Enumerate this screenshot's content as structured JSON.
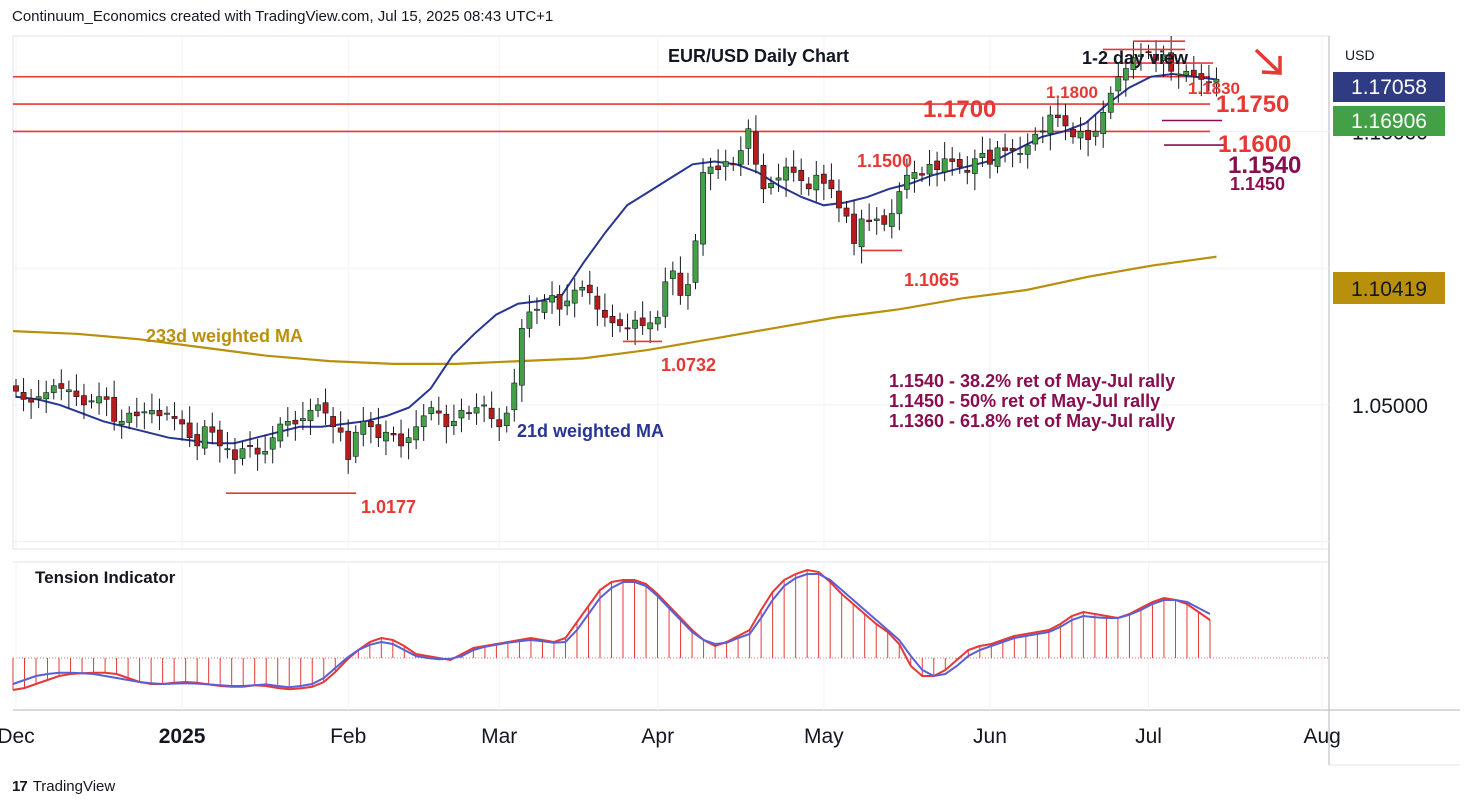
{
  "header": {
    "text": "Continuum_Economics created with TradingView.com, Jul 15, 2025 08:43 UTC+1"
  },
  "footer": {
    "logo_glyph": "17",
    "brand": "TradingView"
  },
  "chart_data": {
    "type": "candlestick",
    "title": "EUR/USD Daily Chart",
    "view_label": "1-2 day view",
    "currency_label": "USD",
    "price_badges": [
      {
        "value": "1.17058",
        "color": "#2f3b83"
      },
      {
        "value": "1.16906",
        "color": "#43a047"
      },
      {
        "value": "1.10419",
        "color": "#b8900c"
      }
    ],
    "ylim": [
      0.9973,
      1.1849
    ],
    "y_ticks": [
      {
        "value": 1.05,
        "label": "1.05000"
      },
      {
        "value": 1.15,
        "label": "1.15000"
      }
    ],
    "x_ticks": [
      {
        "index": 0,
        "label": "Dec",
        "bold": false
      },
      {
        "index": 22,
        "label": "2025",
        "bold": true
      },
      {
        "index": 44,
        "label": "Feb",
        "bold": false
      },
      {
        "index": 64,
        "label": "Mar",
        "bold": false
      },
      {
        "index": 85,
        "label": "Apr",
        "bold": false
      },
      {
        "index": 107,
        "label": "May",
        "bold": false
      },
      {
        "index": 129,
        "label": "Jun",
        "bold": false
      },
      {
        "index": 150,
        "label": "Jul",
        "bold": false
      },
      {
        "index": 173,
        "label": "Aug",
        "bold": false
      }
    ],
    "closes": [
      1.055,
      1.052,
      1.051,
      1.053,
      1.0545,
      1.057,
      1.056,
      1.0555,
      1.053,
      1.05,
      1.0515,
      1.053,
      1.052,
      1.044,
      1.044,
      1.047,
      1.046,
      1.0475,
      1.048,
      1.046,
      1.047,
      1.045,
      1.043,
      1.038,
      1.035,
      1.042,
      1.04,
      1.035,
      1.034,
      1.03,
      1.034,
      1.035,
      1.032,
      1.033,
      1.038,
      1.043,
      1.044,
      1.043,
      1.045,
      1.048,
      1.05,
      1.047,
      1.042,
      1.04,
      1.03,
      1.04,
      1.044,
      1.042,
      1.038,
      1.04,
      1.039,
      1.035,
      1.038,
      1.042,
      1.046,
      1.049,
      1.047,
      1.042,
      1.044,
      1.048,
      1.047,
      1.049,
      1.05,
      1.045,
      1.042,
      1.047,
      1.058,
      1.078,
      1.084,
      1.085,
      1.088,
      1.09,
      1.085,
      1.088,
      1.092,
      1.093,
      1.091,
      1.085,
      1.082,
      1.08,
      1.079,
      1.078,
      1.081,
      1.079,
      1.08,
      1.082,
      1.095,
      1.099,
      1.09,
      1.094,
      1.11,
      1.135,
      1.137,
      1.136,
      1.139,
      1.138,
      1.143,
      1.151,
      1.138,
      1.129,
      1.131,
      1.133,
      1.137,
      1.135,
      1.132,
      1.129,
      1.134,
      1.131,
      1.129,
      1.122,
      1.119,
      1.109,
      1.118,
      1.117,
      1.118,
      1.116,
      1.12,
      1.128,
      1.134,
      1.135,
      1.134,
      1.138,
      1.136,
      1.14,
      1.139,
      1.137,
      1.135,
      1.14,
      1.142,
      1.138,
      1.144,
      1.143,
      1.143,
      1.142,
      1.145,
      1.149,
      1.15,
      1.156,
      1.155,
      1.152,
      1.148,
      1.15,
      1.147,
      1.15,
      1.157,
      1.164,
      1.17,
      1.173,
      1.177,
      1.178,
      1.179,
      1.176,
      1.178,
      1.172,
      1.171,
      1.172,
      1.17,
      1.169,
      1.168,
      1.1691
    ],
    "ma21": {
      "label": "21d weighted MA",
      "color": "#283593",
      "values": [
        1.053,
        1.052,
        1.05,
        1.047,
        1.044,
        1.042,
        1.04,
        1.038,
        1.037,
        1.036,
        1.036,
        1.038,
        1.04,
        1.042,
        1.042,
        1.043,
        1.044,
        1.046,
        1.049,
        1.056,
        1.068,
        1.076,
        1.083,
        1.087,
        1.088,
        1.09,
        1.102,
        1.113,
        1.123,
        1.128,
        1.133,
        1.138,
        1.139,
        1.138,
        1.135,
        1.13,
        1.126,
        1.123,
        1.124,
        1.126,
        1.129,
        1.131,
        1.134,
        1.136,
        1.138,
        1.14,
        1.144,
        1.148,
        1.15,
        1.153,
        1.16,
        1.166,
        1.17,
        1.171,
        1.17,
        1.169
      ]
    },
    "ma233": {
      "label": "233d weighted MA",
      "color": "#b8900c",
      "values": [
        1.077,
        1.076,
        1.074,
        1.071,
        1.068,
        1.066,
        1.065,
        1.065,
        1.066,
        1.067,
        1.07,
        1.074,
        1.078,
        1.082,
        1.085,
        1.089,
        1.092,
        1.097,
        1.101,
        1.1042
      ]
    },
    "hlines": [
      {
        "value": 1.17,
        "label": "1.1700"
      },
      {
        "value": 1.16,
        "label": "1.1600"
      },
      {
        "value": 1.15,
        "label": "1.1500"
      }
    ],
    "segments": [
      {
        "value": 1.183,
        "label": "1.1830"
      },
      {
        "value": 1.18,
        "label": "1.1800"
      },
      {
        "value": 1.175,
        "label": "1.1750"
      },
      {
        "value": 1.154,
        "label": "1.1540"
      },
      {
        "value": 1.145,
        "label": "1.1450"
      },
      {
        "value": 1.1065,
        "label": "1.1065"
      },
      {
        "value": 1.0732,
        "label": "1.0732"
      },
      {
        "value": 1.0177,
        "label": "1.0177"
      }
    ],
    "retracement_notes": [
      "1.1540 - 38.2% ret of May-Jul rally",
      "1.1450 - 50% ret of May-Jul rally",
      "1.1360 - 61.8% ret of May-Jul rally"
    ],
    "indicator": {
      "title": "Tension Indicator",
      "values": [
        -0.8,
        -0.75,
        -0.65,
        -0.55,
        -0.45,
        -0.4,
        -0.38,
        -0.37,
        -0.37,
        -0.4,
        -0.5,
        -0.6,
        -0.65,
        -0.65,
        -0.62,
        -0.6,
        -0.62,
        -0.66,
        -0.7,
        -0.72,
        -0.72,
        -0.68,
        -0.7,
        -0.75,
        -0.78,
        -0.76,
        -0.72,
        -0.6,
        -0.35,
        -0.05,
        0.2,
        0.4,
        0.5,
        0.45,
        0.3,
        0.1,
        0.05,
        0.0,
        -0.05,
        0.1,
        0.25,
        0.3,
        0.35,
        0.4,
        0.45,
        0.5,
        0.45,
        0.4,
        0.5,
        0.9,
        1.3,
        1.7,
        1.9,
        1.95,
        1.95,
        1.85,
        1.6,
        1.3,
        1.0,
        0.7,
        0.45,
        0.3,
        0.4,
        0.55,
        0.7,
        1.2,
        1.65,
        1.95,
        2.1,
        2.2,
        2.15,
        1.9,
        1.6,
        1.35,
        1.1,
        0.85,
        0.65,
        0.35,
        -0.2,
        -0.45,
        -0.45,
        -0.3,
        -0.05,
        0.2,
        0.3,
        0.35,
        0.45,
        0.55,
        0.6,
        0.65,
        0.7,
        0.85,
        1.05,
        1.15,
        1.1,
        1.05,
        1.0,
        1.1,
        1.25,
        1.4,
        1.5,
        1.45,
        1.35,
        1.15,
        0.95
      ],
      "signal": [
        -0.65,
        -0.55,
        -0.45,
        -0.4,
        -0.37,
        -0.37,
        -0.38,
        -0.4,
        -0.45,
        -0.5,
        -0.55,
        -0.6,
        -0.63,
        -0.65,
        -0.64,
        -0.63,
        -0.64,
        -0.66,
        -0.68,
        -0.7,
        -0.7,
        -0.68,
        -0.66,
        -0.7,
        -0.73,
        -0.7,
        -0.65,
        -0.5,
        -0.25,
        0.0,
        0.2,
        0.33,
        0.4,
        0.35,
        0.2,
        0.05,
        0.0,
        -0.03,
        -0.02,
        0.05,
        0.2,
        0.28,
        0.33,
        0.38,
        0.42,
        0.45,
        0.42,
        0.38,
        0.4,
        0.7,
        1.1,
        1.5,
        1.75,
        1.9,
        1.9,
        1.8,
        1.55,
        1.25,
        0.95,
        0.65,
        0.45,
        0.35,
        0.38,
        0.5,
        0.6,
        1.0,
        1.45,
        1.8,
        2.0,
        2.1,
        2.1,
        1.95,
        1.7,
        1.45,
        1.2,
        0.95,
        0.7,
        0.45,
        0.05,
        -0.3,
        -0.45,
        -0.4,
        -0.2,
        0.05,
        0.2,
        0.3,
        0.4,
        0.5,
        0.55,
        0.6,
        0.65,
        0.78,
        0.95,
        1.05,
        1.02,
        1.0,
        1.0,
        1.08,
        1.2,
        1.35,
        1.45,
        1.45,
        1.4,
        1.25,
        1.1
      ]
    }
  }
}
